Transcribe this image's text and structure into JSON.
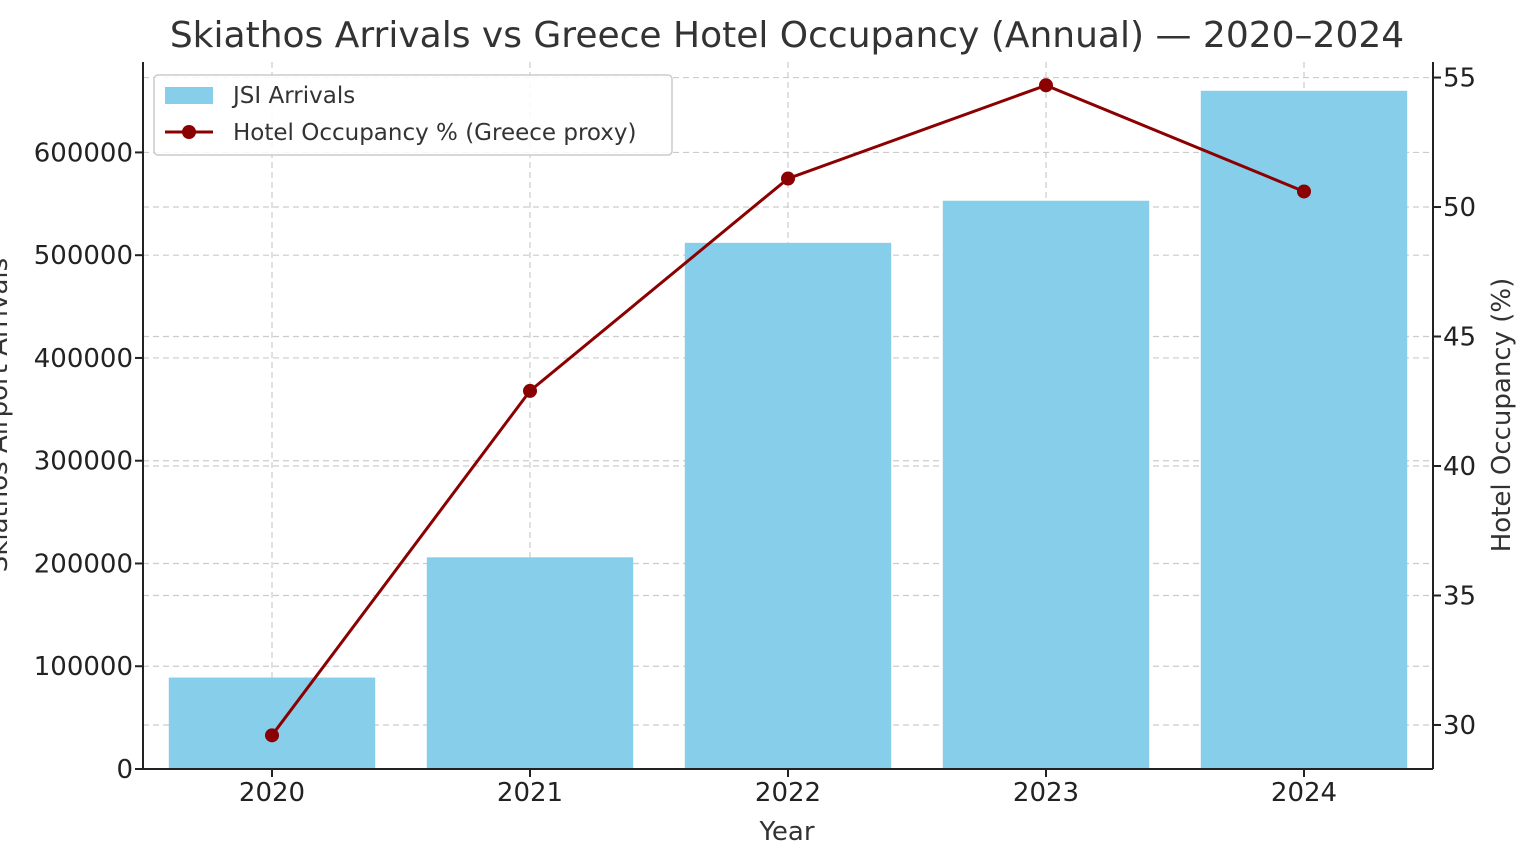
{
  "chart_data": {
    "type": "bar",
    "title": "Skiathos Arrivals vs Greece Hotel Occupancy (Annual) — 2020–2024",
    "xlabel": "Year",
    "ylabel": "Skiathos Airport Arrivals",
    "y2label": "Hotel Occupancy (%)",
    "categories": [
      "2020",
      "2021",
      "2022",
      "2023",
      "2024"
    ],
    "ylim": [
      0,
      688000
    ],
    "y2lim": [
      28.3,
      55.6
    ],
    "yticks": [
      0,
      100000,
      200000,
      300000,
      400000,
      500000,
      600000
    ],
    "yticklabels": [
      "0",
      "100000",
      "200000",
      "300000",
      "400000",
      "500000",
      "600000"
    ],
    "y2ticks": [
      30,
      35,
      40,
      45,
      50,
      55
    ],
    "y2ticklabels": [
      "30",
      "35",
      "40",
      "45",
      "50",
      "55"
    ],
    "grid": true,
    "legend_position": "top-left",
    "series": [
      {
        "name": "JSI Arrivals",
        "kind": "bar",
        "axis": "left",
        "color": "#87ceeb",
        "values": [
          89000,
          206000,
          512000,
          553000,
          660000
        ]
      },
      {
        "name": "Hotel Occupancy % (Greece proxy)",
        "kind": "line",
        "axis": "right",
        "color": "#8b0000",
        "values": [
          29.6,
          42.9,
          51.1,
          54.7,
          50.6
        ]
      }
    ]
  }
}
